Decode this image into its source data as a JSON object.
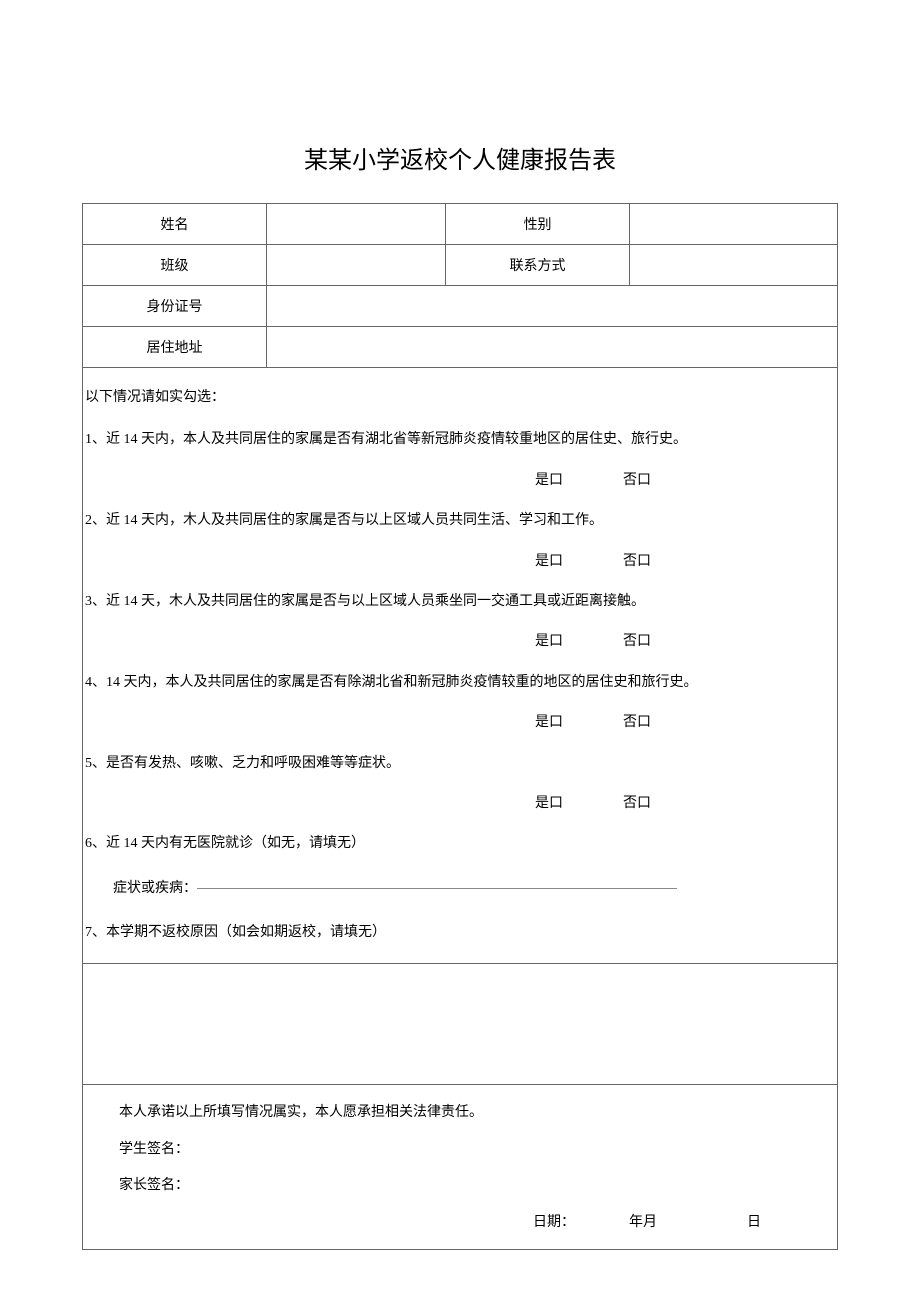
{
  "title": "某某小学返校个人健康报告表",
  "header": {
    "name_label": "姓名",
    "gender_label": "性别",
    "class_label": "班级",
    "contact_label": "联系方式",
    "id_label": "身份证号",
    "address_label": "居住地址"
  },
  "intro": "以下情况请如实勾选：",
  "questions": {
    "q1": "1、近 14 天内，本人及共同居住的家属是否有湖北省等新冠肺炎疫情较重地区的居住史、旅行史。",
    "q2": "2、近 14 天内，木人及共同居住的家属是否与以上区域人员共同生活、学习和工作。",
    "q3": "3、近 14 天，木人及共同居住的家属是否与以上区域人员乘坐同一交通工具或近距离接触。",
    "q4": "4、14 天内，本人及共同居住的家属是否有除湖北省和新冠肺炎疫情较重的地区的居住史和旅行史。",
    "q5": "5、是否有发热、咳嗽、乏力和呼吸困难等等症状。",
    "q6": "6、近 14 天内有无医院就诊（如无，请填无）",
    "q6_sub": "症状或疾病：",
    "q7": "7、本学期不返校原因（如会如期返校，请填无）"
  },
  "choice": {
    "yes": "是口",
    "no": "否口"
  },
  "footer": {
    "promise": "本人承诺以上所填写情况属实，本人愿承担相关法律责任。",
    "student_sig": "学生签名：",
    "parent_sig": "家长签名：",
    "date_label": "日期：",
    "year_month": "年月",
    "day": "日"
  },
  "colors": {
    "border": "#666666",
    "text": "#000000",
    "background": "#ffffff"
  },
  "fonts": {
    "title_size": 24,
    "body_size": 14,
    "family": "SimSun"
  }
}
